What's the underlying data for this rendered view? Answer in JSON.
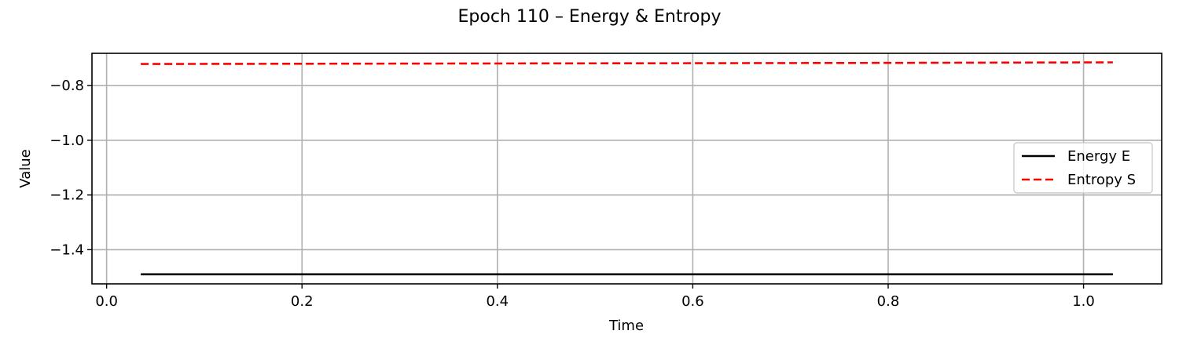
{
  "chart_data": {
    "type": "line",
    "title": "Epoch 110 – Energy & Entropy",
    "xlabel": "Time",
    "ylabel": "Value",
    "xlim": [
      -0.015,
      1.08
    ],
    "ylim": [
      -1.525,
      -0.682
    ],
    "xticks": [
      0.0,
      0.2,
      0.4,
      0.6,
      0.8,
      1.0
    ],
    "xtick_labels": [
      "0.0",
      "0.2",
      "0.4",
      "0.6",
      "0.8",
      "1.0"
    ],
    "yticks": [
      -0.8,
      -1.0,
      -1.2,
      -1.4
    ],
    "ytick_labels": [
      "−0.8",
      "−1.0",
      "−1.2",
      "−1.4"
    ],
    "grid": true,
    "legend_position": "right",
    "series": [
      {
        "name": "Energy E",
        "color": "#000000",
        "style": "solid",
        "x": [
          0.035,
          0.2,
          0.4,
          0.6,
          0.8,
          1.03
        ],
        "y": [
          -1.49,
          -1.49,
          -1.49,
          -1.49,
          -1.49,
          -1.49
        ]
      },
      {
        "name": "Entropy S",
        "color": "#ff0000",
        "style": "dashed",
        "x": [
          0.035,
          0.2,
          0.4,
          0.6,
          0.8,
          1.03
        ],
        "y": [
          -0.721,
          -0.72,
          -0.719,
          -0.718,
          -0.717,
          -0.715
        ]
      }
    ]
  }
}
